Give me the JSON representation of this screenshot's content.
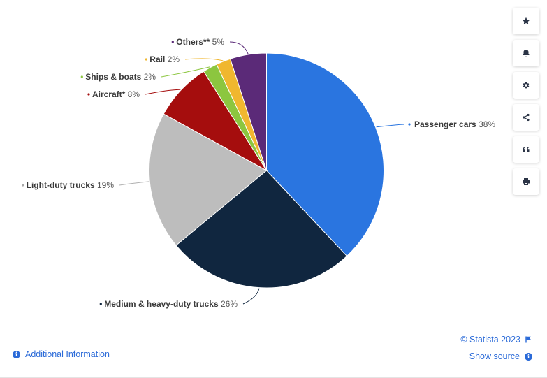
{
  "chart_data": {
    "type": "pie",
    "title": "",
    "slices": [
      {
        "label": "Passenger cars",
        "value": 38,
        "value_label": "38%",
        "color": "#2a75e0"
      },
      {
        "label": "Medium & heavy-duty trucks",
        "value": 26,
        "value_label": "26%",
        "color": "#10263f"
      },
      {
        "label": "Light-duty trucks",
        "value": 19,
        "value_label": "19%",
        "color": "#bdbdbd"
      },
      {
        "label": "Aircraft*",
        "value": 8,
        "value_label": "8%",
        "color": "#a50d0d"
      },
      {
        "label": "Ships & boats",
        "value": 2,
        "value_label": "2%",
        "color": "#8cc63f"
      },
      {
        "label": "Rail",
        "value": 2,
        "value_label": "2%",
        "color": "#f0b72f"
      },
      {
        "label": "Others**",
        "value": 5,
        "value_label": "5%",
        "color": "#5b2a78"
      }
    ]
  },
  "sidebar": {
    "buttons": [
      {
        "icon": "star-icon"
      },
      {
        "icon": "bell-icon"
      },
      {
        "icon": "gear-icon"
      },
      {
        "icon": "share-icon"
      },
      {
        "icon": "quote-icon"
      },
      {
        "icon": "print-icon"
      }
    ]
  },
  "footer": {
    "additional_info": "Additional Information",
    "copyright": "© Statista 2023",
    "show_source": "Show source"
  }
}
